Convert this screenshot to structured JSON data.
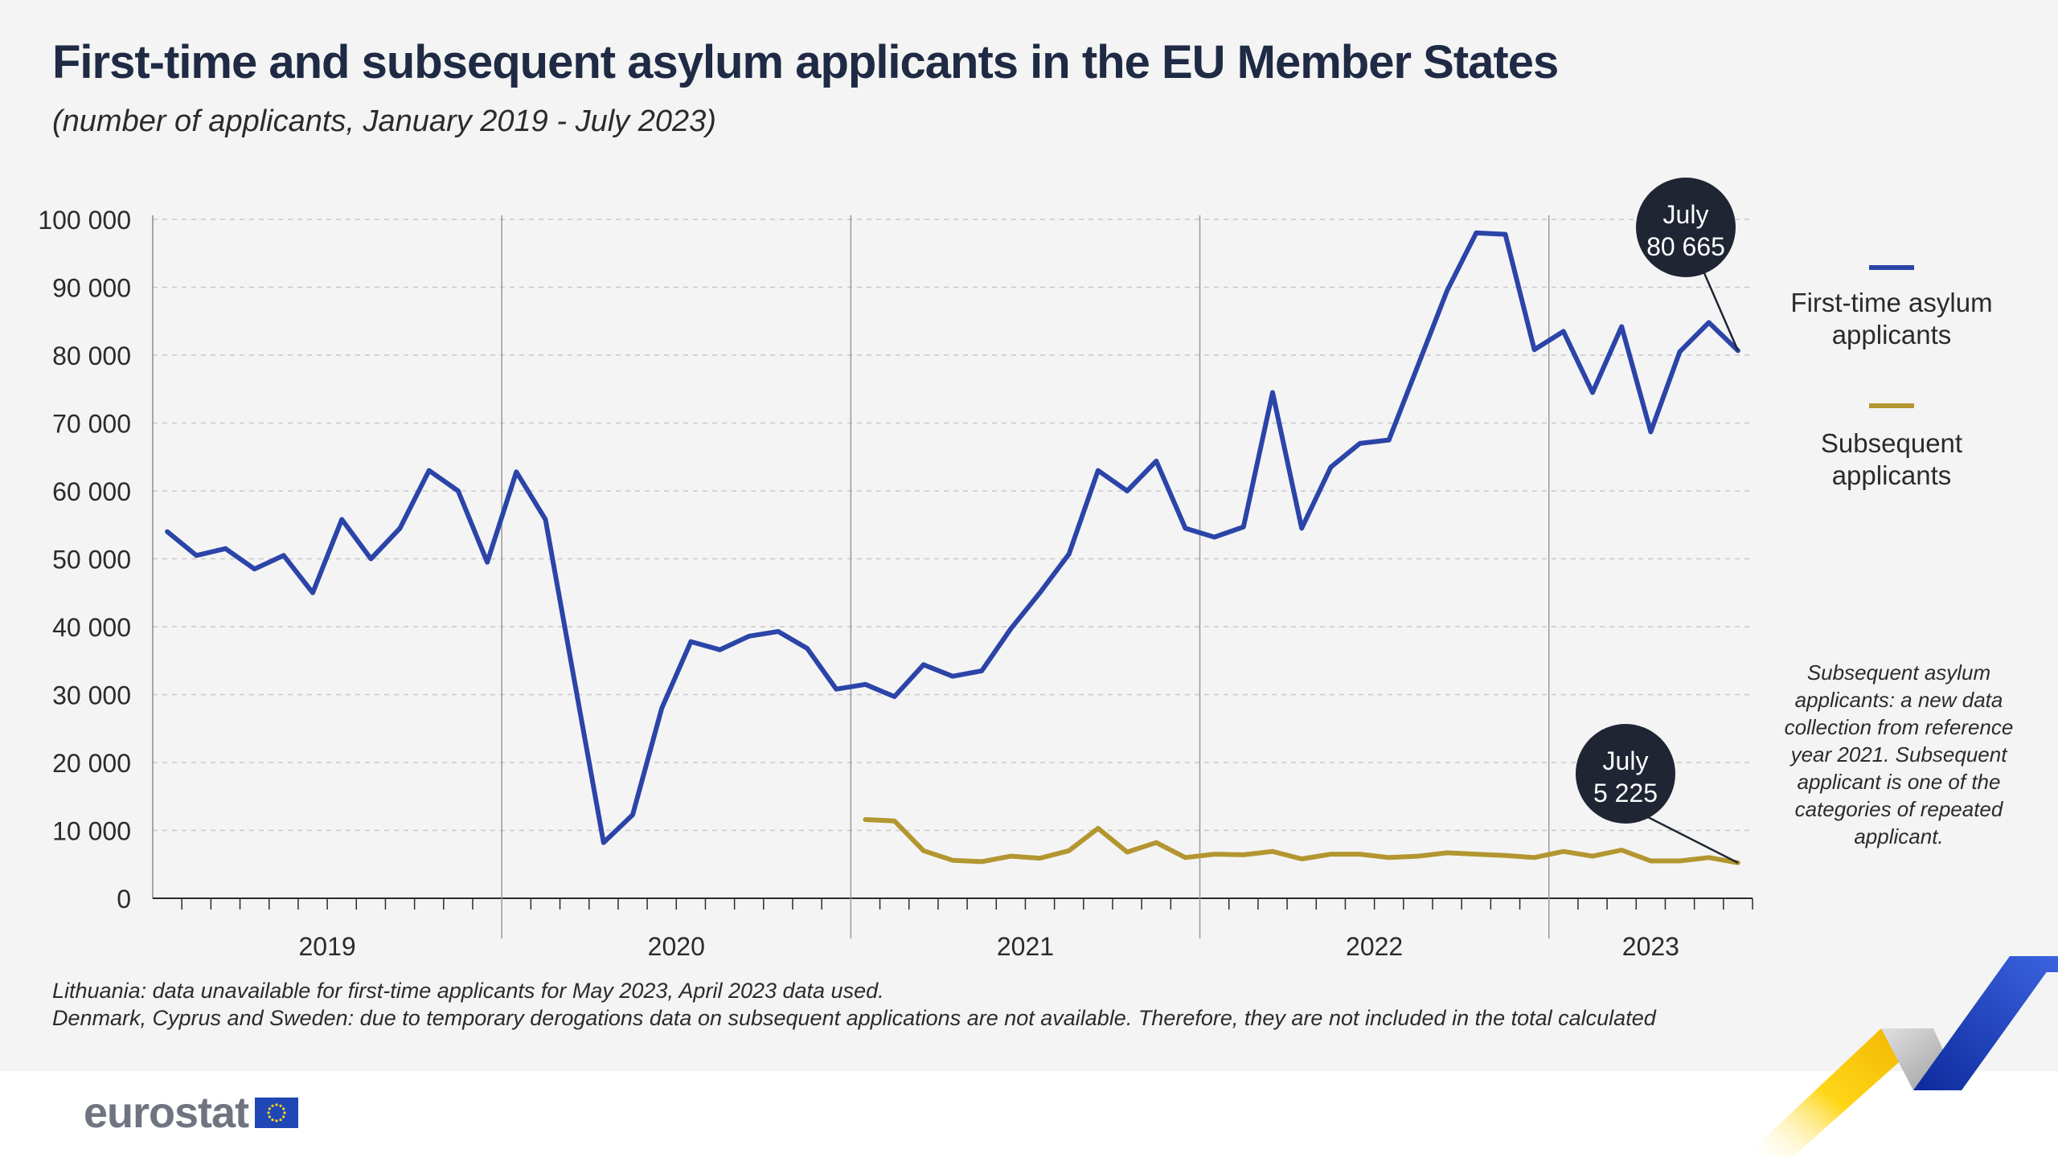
{
  "header": {
    "title": "First-time and subsequent asylum applicants in the EU Member States",
    "subtitle": "(number of applicants, January 2019 - July 2023)"
  },
  "legend": {
    "first_time": "First-time asylum applicants",
    "subsequent": "Subsequent applicants"
  },
  "colors": {
    "first_time": "#2b44a8",
    "subsequent": "#b39630",
    "callout_bg": "#1f2533",
    "background": "#f4f4f4"
  },
  "side_note": "Subsequent asylum applicants: a new data collection from reference year 2021. Subsequent applicant is one of the categories of repeated applicant.",
  "footnotes": [
    "Lithuania: data unavailable for first-time applicants for May 2023, April 2023 data used.",
    "Denmark, Cyprus and Sweden: due to temporary derogations data on subsequent applications are not available. Therefore, they are not included in the total calculated"
  ],
  "brand": {
    "logo_text": "eurostat",
    "flag_icon": "eu-flag-icon",
    "corner_icon": "eurostat-ribbon-icon"
  },
  "chart_data": {
    "type": "line",
    "title": "First-time and subsequent asylum applicants in the EU Member States",
    "subtitle": "(number of applicants, January 2019 - July 2023)",
    "xlabel": "",
    "ylabel": "",
    "ylim": [
      0,
      100000
    ],
    "y_ticks": [
      0,
      10000,
      20000,
      30000,
      40000,
      50000,
      60000,
      70000,
      80000,
      90000,
      100000
    ],
    "y_tick_labels": [
      "0",
      "10 000",
      "20 000",
      "30 000",
      "40 000",
      "50 000",
      "60 000",
      "70 000",
      "80 000",
      "90 000",
      "100 000"
    ],
    "years": [
      "2019",
      "2020",
      "2021",
      "2022",
      "2023"
    ],
    "months_per_year": [
      12,
      12,
      12,
      12,
      7
    ],
    "grid": "horizontal dashed",
    "series": [
      {
        "name": "First-time asylum applicants",
        "start_month_index": 0,
        "values": [
          54000,
          50500,
          51500,
          48500,
          50500,
          45000,
          55800,
          50000,
          54500,
          63000,
          60000,
          49500,
          62800,
          55800,
          32000,
          8200,
          12300,
          28000,
          37800,
          36600,
          38600,
          39300,
          36800,
          30800,
          31500,
          29700,
          34400,
          32700,
          33500,
          39700,
          45000,
          50700,
          63000,
          60000,
          64400,
          54500,
          53200,
          54700,
          74500,
          54500,
          63500,
          67000,
          67500,
          78500,
          89500,
          98000,
          97800,
          80800,
          83500,
          74500,
          84200,
          68700,
          80500,
          84800,
          80665
        ]
      },
      {
        "name": "Subsequent applicants",
        "start_month_index": 24,
        "values": [
          11600,
          11400,
          7000,
          5600,
          5400,
          6200,
          5900,
          7000,
          10300,
          6800,
          8200,
          6000,
          6500,
          6400,
          6900,
          5800,
          6500,
          6500,
          6000,
          6200,
          6700,
          6500,
          6300,
          6000,
          6900,
          6200,
          7100,
          5500,
          5500,
          6000,
          5225
        ]
      }
    ],
    "annotations": [
      {
        "label_month": "July",
        "label_value": "80 665",
        "series": "First-time asylum applicants"
      },
      {
        "label_month": "July",
        "label_value": "5 225",
        "series": "Subsequent applicants"
      }
    ]
  }
}
